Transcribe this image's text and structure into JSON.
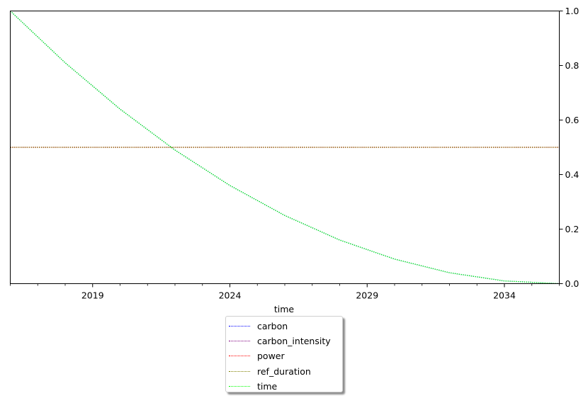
{
  "chart_data": {
    "type": "line",
    "xlabel": "time",
    "ylabel": "",
    "xlim": [
      2016,
      2036
    ],
    "ylim": [
      0,
      1.0
    ],
    "y_axis_side": "right",
    "grid": false,
    "legend_placement": "below the axes, centered",
    "x_tick_labels": [
      "2019",
      "2024",
      "2029",
      "2034"
    ],
    "y_tick_labels": [
      "0.0",
      "0.2",
      "0.4",
      "0.6",
      "0.8",
      "1.0"
    ],
    "series": [
      {
        "name": "carbon",
        "color": "#0000ff",
        "style": "dotted",
        "x": [
          2016,
          2018,
          2020,
          2022,
          2024,
          2026,
          2028,
          2030,
          2032,
          2034,
          2036
        ],
        "y": [
          1.0,
          0.81,
          0.64,
          0.49,
          0.36,
          0.25,
          0.16,
          0.09,
          0.04,
          0.01,
          0.0
        ]
      },
      {
        "name": "carbon_intensity",
        "color": "#800080",
        "style": "dotted",
        "x": [
          2016,
          2036
        ],
        "y": [
          0.5,
          0.5
        ]
      },
      {
        "name": "power",
        "color": "#ff0000",
        "style": "dotted",
        "x": [
          2016,
          2036
        ],
        "y": [
          0.5,
          0.5
        ]
      },
      {
        "name": "ref_duration",
        "color": "#808000",
        "style": "dotted",
        "x": [
          2016,
          2036
        ],
        "y": [
          0.5,
          0.5
        ]
      },
      {
        "name": "time",
        "color": "#00ff00",
        "style": "dotted",
        "x": [
          2016,
          2018,
          2020,
          2022,
          2024,
          2026,
          2028,
          2030,
          2032,
          2034,
          2036
        ],
        "y": [
          1.0,
          0.81,
          0.64,
          0.49,
          0.36,
          0.25,
          0.16,
          0.09,
          0.04,
          0.01,
          0.0
        ]
      }
    ]
  }
}
